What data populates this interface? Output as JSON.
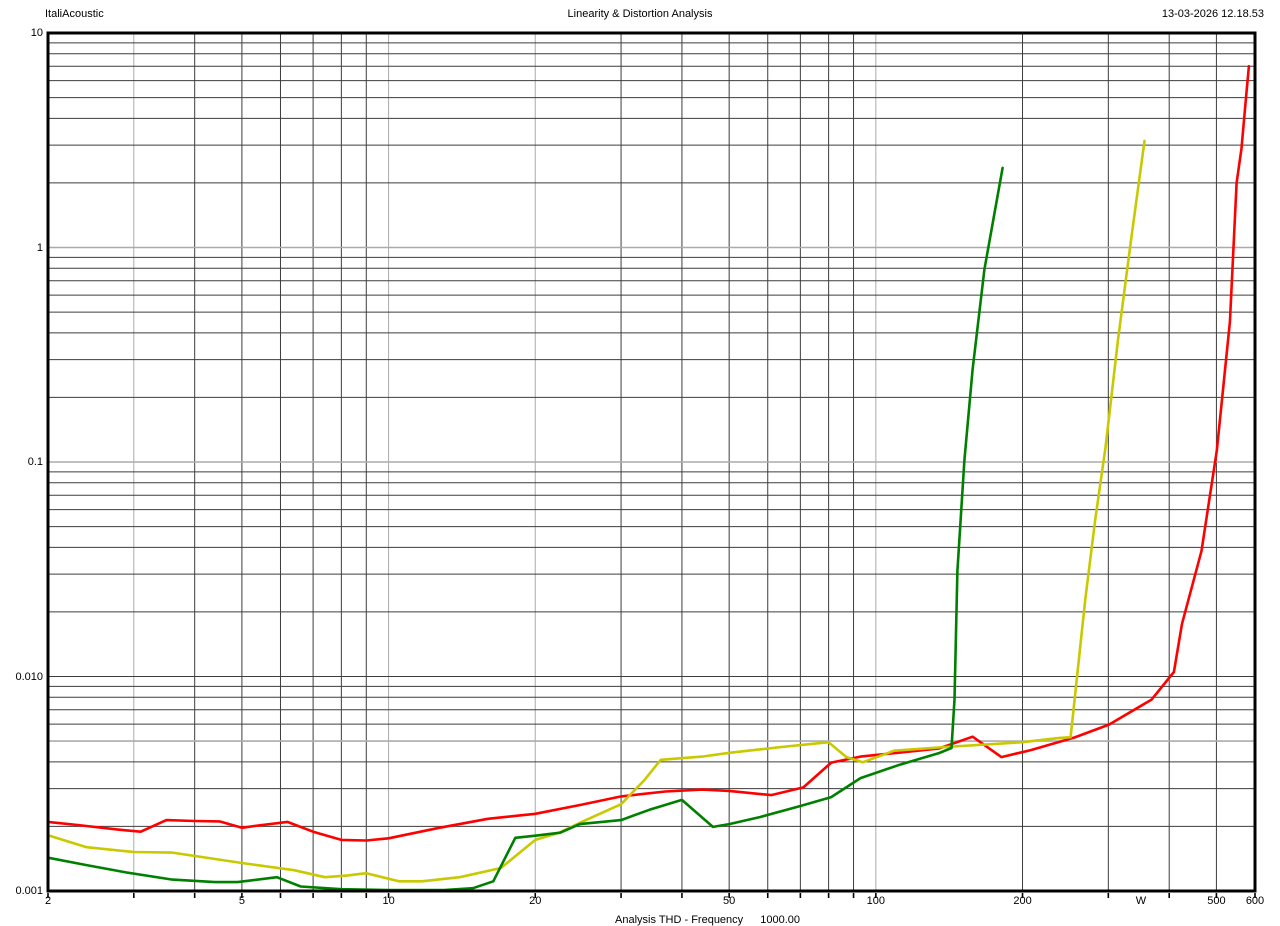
{
  "header": {
    "app_name": "ItaliAcoustic",
    "title": "Linearity & Distortion Analysis",
    "datetime": "13-03-2026 12.18.53"
  },
  "caption": {
    "text": "Analysis THD - Frequency",
    "value": "1000.00"
  },
  "chart_data": {
    "type": "line",
    "title": "Linearity & Distortion Analysis",
    "xlabel": "W",
    "ylabel": "",
    "x_scale": "log",
    "y_scale": "log",
    "xlim": [
      2,
      600
    ],
    "ylim": [
      0.001,
      10
    ],
    "grid": "on",
    "legend": "none",
    "x_tick_labels": [
      {
        "label": "2",
        "value": 2
      },
      {
        "label": "5",
        "value": 5
      },
      {
        "label": "10",
        "value": 10
      },
      {
        "label": "20",
        "value": 20
      },
      {
        "label": "50",
        "value": 50
      },
      {
        "label": "100",
        "value": 100
      },
      {
        "label": "200",
        "value": 200
      },
      {
        "label": "W",
        "value": 350
      },
      {
        "label": "500",
        "value": 500
      },
      {
        "label": "600",
        "value": 600
      }
    ],
    "y_tick_labels": [
      {
        "label": "10",
        "value": 10
      },
      {
        "label": "1",
        "value": 1
      },
      {
        "label": "0.1",
        "value": 0.1
      },
      {
        "label": "0.010",
        "value": 0.01
      },
      {
        "label": "0.001",
        "value": 0.001
      }
    ],
    "grid_style": {
      "line_color": "#3d3d3d",
      "light_line_color": "#ababab",
      "light_x": [
        3,
        10,
        20,
        100
      ],
      "light_y": [
        1,
        0.1,
        0.005
      ],
      "border_color": "#000000"
    },
    "series": [
      {
        "name": "red",
        "color": "#ff0000",
        "points": [
          [
            2,
            0.0021
          ],
          [
            2.3,
            0.00203
          ],
          [
            2.8,
            0.00193
          ],
          [
            3.1,
            0.00189
          ],
          [
            3.5,
            0.00214
          ],
          [
            4,
            0.00212
          ],
          [
            4.5,
            0.00211
          ],
          [
            5,
            0.00197
          ],
          [
            5.4,
            0.00202
          ],
          [
            6.2,
            0.0021
          ],
          [
            7,
            0.00189
          ],
          [
            8,
            0.00173
          ],
          [
            9,
            0.00172
          ],
          [
            10,
            0.00176
          ],
          [
            12.7,
            0.00197
          ],
          [
            16,
            0.00217
          ],
          [
            20,
            0.00229
          ],
          [
            25,
            0.00253
          ],
          [
            30,
            0.00276
          ],
          [
            37,
            0.00291
          ],
          [
            44,
            0.00297
          ],
          [
            50,
            0.00293
          ],
          [
            61,
            0.0028
          ],
          [
            71,
            0.00304
          ],
          [
            81,
            0.00397
          ],
          [
            93,
            0.00423
          ],
          [
            112,
            0.00442
          ],
          [
            135,
            0.00462
          ],
          [
            158,
            0.00524
          ],
          [
            181,
            0.00421
          ],
          [
            208,
            0.00454
          ],
          [
            256,
            0.0052
          ],
          [
            301,
            0.00597
          ],
          [
            368,
            0.0078
          ],
          [
            409,
            0.0105
          ],
          [
            425,
            0.0176
          ],
          [
            466,
            0.0385
          ],
          [
            501,
            0.113
          ],
          [
            533,
            0.45
          ],
          [
            550,
            2.0
          ],
          [
            563,
            2.9
          ],
          [
            575,
            5.0
          ],
          [
            583,
            7.0
          ]
        ]
      },
      {
        "name": "yellow",
        "color": "#c9c900",
        "points": [
          [
            2,
            0.00182
          ],
          [
            2.4,
            0.0016
          ],
          [
            3,
            0.00152
          ],
          [
            3.6,
            0.00151
          ],
          [
            5,
            0.00135
          ],
          [
            6.4,
            0.00125
          ],
          [
            7.4,
            0.00116
          ],
          [
            8.2,
            0.00118
          ],
          [
            9,
            0.00121
          ],
          [
            10.5,
            0.00111
          ],
          [
            11.7,
            0.00111
          ],
          [
            14,
            0.00116
          ],
          [
            17,
            0.00128
          ],
          [
            20,
            0.00173
          ],
          [
            22.4,
            0.00187
          ],
          [
            24.7,
            0.00208
          ],
          [
            30,
            0.00254
          ],
          [
            33.5,
            0.00329
          ],
          [
            36.2,
            0.00409
          ],
          [
            44,
            0.00423
          ],
          [
            50,
            0.00441
          ],
          [
            64,
            0.00469
          ],
          [
            80,
            0.00494
          ],
          [
            87,
            0.00421
          ],
          [
            94,
            0.00398
          ],
          [
            109,
            0.00451
          ],
          [
            139,
            0.00469
          ],
          [
            200,
            0.00494
          ],
          [
            237,
            0.00516
          ],
          [
            251,
            0.00521
          ],
          [
            269,
            0.0227
          ],
          [
            282,
            0.0537
          ],
          [
            296,
            0.117
          ],
          [
            314,
            0.371
          ],
          [
            334,
            1.08
          ],
          [
            356,
            3.14
          ]
        ]
      },
      {
        "name": "green",
        "color": "#008000",
        "points": [
          [
            2,
            0.00143
          ],
          [
            2.4,
            0.00132
          ],
          [
            2.9,
            0.00122
          ],
          [
            3.6,
            0.00113
          ],
          [
            4.4,
            0.0011
          ],
          [
            4.9,
            0.0011
          ],
          [
            5.9,
            0.00116
          ],
          [
            6.6,
            0.00105
          ],
          [
            8,
            0.00102
          ],
          [
            10,
            0.00101
          ],
          [
            13,
            0.00101
          ],
          [
            14.9,
            0.00103
          ],
          [
            16.4,
            0.00111
          ],
          [
            18.2,
            0.00177
          ],
          [
            20,
            0.00181
          ],
          [
            22.5,
            0.00187
          ],
          [
            24.7,
            0.00205
          ],
          [
            30,
            0.00214
          ],
          [
            34.3,
            0.00239
          ],
          [
            40,
            0.00266
          ],
          [
            46.3,
            0.00199
          ],
          [
            50,
            0.00205
          ],
          [
            57.8,
            0.00221
          ],
          [
            70,
            0.00249
          ],
          [
            81,
            0.00274
          ],
          [
            93,
            0.00336
          ],
          [
            112,
            0.00388
          ],
          [
            135,
            0.0044
          ],
          [
            143,
            0.00464
          ],
          [
            145,
            0.0078
          ],
          [
            147,
            0.031
          ],
          [
            152,
            0.102
          ],
          [
            158,
            0.27
          ],
          [
            167,
            0.79
          ],
          [
            182,
            2.35
          ]
        ]
      }
    ]
  }
}
